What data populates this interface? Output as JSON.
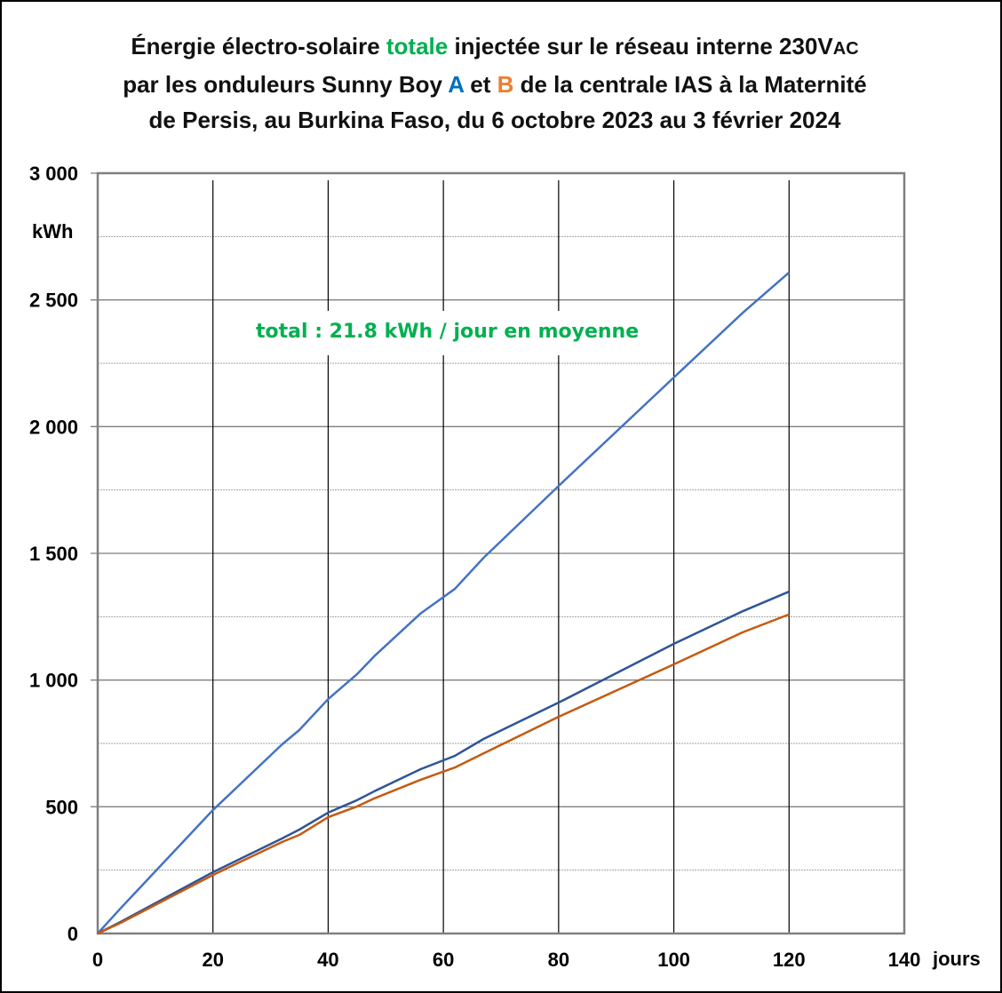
{
  "chart_data": {
    "type": "line",
    "title": {
      "line1_pre": "Énergie électro-solaire ",
      "line1_highlight": "totale",
      "line1_post": " injectée sur le réseau interne 230V",
      "line1_sub": "AC",
      "line2_pre": "par les onduleurs Sunny Boy ",
      "line2_a": "A",
      "line2_mid": " et ",
      "line2_b": "B",
      "line2_post": " de la centrale IAS à la Maternité",
      "line3": "de Persis, au Burkina Faso, du 6 octobre 2023 au 3 février 2024"
    },
    "xlabel": "jours",
    "ylabel": "kWh",
    "xlim": [
      0,
      140
    ],
    "ylim": [
      0,
      3000
    ],
    "xticks": [
      "0",
      "20",
      "40",
      "60",
      "80",
      "100",
      "120",
      "140"
    ],
    "xtick_values": [
      0,
      20,
      40,
      60,
      80,
      100,
      120,
      140
    ],
    "yticks": [
      "0",
      "500",
      "1 000",
      "1 500",
      "2 000",
      "2 500",
      "3 000"
    ],
    "ytick_values": [
      0,
      500,
      1000,
      1500,
      2000,
      2500,
      3000
    ],
    "grid": true,
    "annotation": "total : 21.8 kWh / jour en moyenne",
    "colors": {
      "total": "#4472c4",
      "A": "#2f5597",
      "B": "#c55a11",
      "highlight": "#00b050",
      "a_label": "#0070c0",
      "b_label": "#ed7d31"
    },
    "series": [
      {
        "name": "total",
        "x": [
          0,
          4,
          20,
          32,
          35,
          40,
          45,
          48,
          56,
          62,
          67,
          80,
          100,
          112,
          120
        ],
        "values": [
          0,
          100,
          487,
          746,
          803,
          925,
          1023,
          1094,
          1262,
          1360,
          1483,
          1766,
          2194,
          2450,
          2608
        ]
      },
      {
        "name": "A",
        "x": [
          0,
          4,
          20,
          32,
          35,
          40,
          45,
          48,
          56,
          62,
          67,
          80,
          100,
          112,
          120
        ],
        "values": [
          0,
          46,
          242,
          375,
          410,
          477,
          526,
          561,
          648,
          701,
          768,
          911,
          1143,
          1272,
          1349
        ]
      },
      {
        "name": "B",
        "x": [
          0,
          4,
          20,
          32,
          35,
          40,
          45,
          48,
          56,
          62,
          67,
          80,
          100,
          112,
          120
        ],
        "values": [
          0,
          42,
          231,
          361,
          389,
          459,
          501,
          533,
          606,
          655,
          711,
          855,
          1062,
          1189,
          1259
        ]
      }
    ]
  }
}
